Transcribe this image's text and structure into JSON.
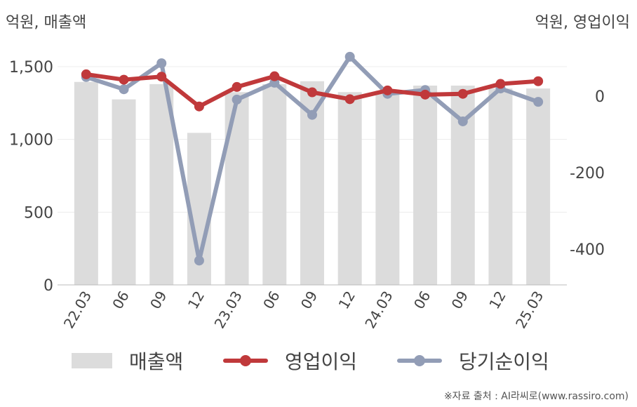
{
  "units": {
    "left": "억원, 매출액",
    "right": "억원, 영업이익"
  },
  "source": "※자료 출처 : AI라씨로(www.rassiro.com)",
  "colors": {
    "revenue": "#dcdcdc",
    "op_profit": "#c0393b",
    "net_profit": "#929db6"
  },
  "chart_data": {
    "type": "bar",
    "categories": [
      "22.03",
      "06",
      "09",
      "12",
      "23.03",
      "06",
      "09",
      "12",
      "24.03",
      "06",
      "09",
      "12",
      "25.03"
    ],
    "series": [
      {
        "name": "매출액",
        "type": "bar",
        "axis": "left",
        "values": [
          1395,
          1275,
          1380,
          1045,
          1325,
          1380,
          1400,
          1325,
          1335,
          1370,
          1370,
          1350,
          1350
        ]
      },
      {
        "name": "영업이익",
        "type": "line",
        "axis": "right",
        "values": [
          57,
          43,
          51,
          -27,
          24,
          52,
          10,
          -8,
          15,
          4,
          6,
          32,
          39
        ]
      },
      {
        "name": "당기순이익",
        "type": "line",
        "axis": "right",
        "values": [
          50,
          18,
          86,
          -430,
          -9,
          35,
          -49,
          103,
          6,
          16,
          -66,
          20,
          -15
        ]
      }
    ],
    "left_axis": {
      "ylim": [
        0,
        1500
      ],
      "ticks": [
        "0",
        "500",
        "1,000",
        "1,500"
      ],
      "tick_values": [
        0,
        500,
        1000,
        1500
      ]
    },
    "right_axis": {
      "ylim": [
        -500,
        100
      ],
      "ticks": [
        "0",
        "-200",
        "-400"
      ],
      "tick_values": [
        0,
        -200,
        -400
      ]
    },
    "grid": true,
    "legend": "bottom"
  }
}
